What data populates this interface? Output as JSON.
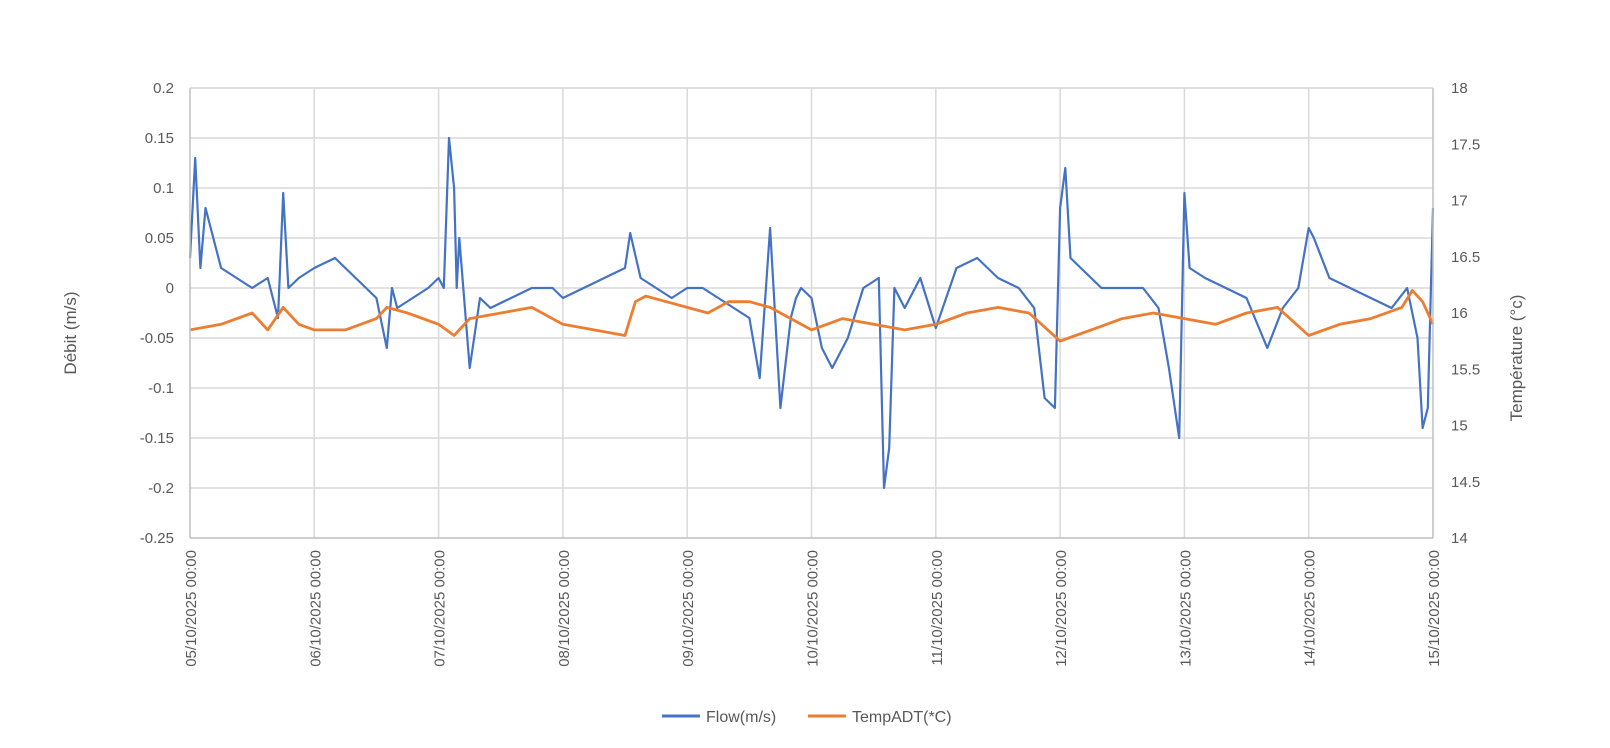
{
  "chart_data": {
    "type": "line",
    "title": "",
    "xlabel": "",
    "ylabel_left": "Débit (m/s)",
    "ylabel_right": "Température (°c)",
    "ylim_left": [
      -0.25,
      0.2
    ],
    "ylim_right": [
      14,
      18
    ],
    "y_ticks_left": [
      "0.2",
      "0.15",
      "0.1",
      "0.05",
      "0",
      "-0.05",
      "-0.1",
      "-0.15",
      "-0.2",
      "-0.25"
    ],
    "y_ticks_right": [
      "18",
      "17.5",
      "17",
      "16.5",
      "16",
      "15.5",
      "15",
      "14.5",
      "14"
    ],
    "x_tick_labels": [
      "05/10/2025 00:00",
      "06/10/2025 00:00",
      "07/10/2025 00:00",
      "08/10/2025 00:00",
      "09/10/2025 00:00",
      "10/10/2025 00:00",
      "11/10/2025 00:00",
      "12/10/2025 00:00",
      "13/10/2025 00:00",
      "14/10/2025 00:00",
      "15/10/2025 00:00"
    ],
    "grid": true,
    "legend": "bottom",
    "series": [
      {
        "name": "Flow(m/s)",
        "axis": "left",
        "color": "#4472c4",
        "x": [
          "05/10/2025 00:00",
          "05/10/2025 01:00",
          "05/10/2025 02:00",
          "05/10/2025 03:00",
          "05/10/2025 06:00",
          "05/10/2025 09:00",
          "05/10/2025 12:00",
          "05/10/2025 15:00",
          "05/10/2025 17:00",
          "05/10/2025 18:00",
          "05/10/2025 19:00",
          "05/10/2025 21:00",
          "06/10/2025 00:00",
          "06/10/2025 04:00",
          "06/10/2025 08:00",
          "06/10/2025 12:00",
          "06/10/2025 14:00",
          "06/10/2025 15:00",
          "06/10/2025 16:00",
          "06/10/2025 19:00",
          "06/10/2025 22:00",
          "07/10/2025 00:00",
          "07/10/2025 01:00",
          "07/10/2025 02:00",
          "07/10/2025 03:00",
          "07/10/2025 03:30",
          "07/10/2025 04:00",
          "07/10/2025 06:00",
          "07/10/2025 08:00",
          "07/10/2025 10:00",
          "07/10/2025 14:00",
          "07/10/2025 18:00",
          "07/10/2025 22:00",
          "08/10/2025 00:00",
          "08/10/2025 04:00",
          "08/10/2025 08:00",
          "08/10/2025 12:00",
          "08/10/2025 13:00",
          "08/10/2025 15:00",
          "08/10/2025 18:00",
          "08/10/2025 21:00",
          "09/10/2025 00:00",
          "09/10/2025 03:00",
          "09/10/2025 06:00",
          "09/10/2025 09:00",
          "09/10/2025 12:00",
          "09/10/2025 14:00",
          "09/10/2025 16:00",
          "09/10/2025 18:00",
          "09/10/2025 20:00",
          "09/10/2025 21:00",
          "09/10/2025 22:00",
          "10/10/2025 00:00",
          "10/10/2025 02:00",
          "10/10/2025 04:00",
          "10/10/2025 07:00",
          "10/10/2025 10:00",
          "10/10/2025 13:00",
          "10/10/2025 14:00",
          "10/10/2025 15:00",
          "10/10/2025 16:00",
          "10/10/2025 18:00",
          "10/10/2025 21:00",
          "11/10/2025 00:00",
          "11/10/2025 04:00",
          "11/10/2025 08:00",
          "11/10/2025 12:00",
          "11/10/2025 16:00",
          "11/10/2025 19:00",
          "11/10/2025 21:00",
          "11/10/2025 23:00",
          "12/10/2025 00:00",
          "12/10/2025 01:00",
          "12/10/2025 02:00",
          "12/10/2025 04:00",
          "12/10/2025 08:00",
          "12/10/2025 12:00",
          "12/10/2025 16:00",
          "12/10/2025 19:00",
          "12/10/2025 21:00",
          "12/10/2025 23:00",
          "13/10/2025 00:00",
          "13/10/2025 01:00",
          "13/10/2025 04:00",
          "13/10/2025 08:00",
          "13/10/2025 12:00",
          "13/10/2025 16:00",
          "13/10/2025 19:00",
          "13/10/2025 22:00",
          "14/10/2025 00:00",
          "14/10/2025 01:00",
          "14/10/2025 04:00",
          "14/10/2025 08:00",
          "14/10/2025 12:00",
          "14/10/2025 16:00",
          "14/10/2025 19:00",
          "14/10/2025 21:00",
          "14/10/2025 22:00",
          "14/10/2025 23:00",
          "15/10/2025 00:00"
        ],
        "y": [
          0.03,
          0.13,
          0.02,
          0.08,
          0.02,
          0.01,
          0.0,
          0.01,
          -0.03,
          0.095,
          0.0,
          0.01,
          0.02,
          0.03,
          0.01,
          -0.01,
          -0.06,
          0.0,
          -0.02,
          -0.01,
          0.0,
          0.01,
          0.0,
          0.15,
          0.1,
          0.0,
          0.05,
          -0.08,
          -0.01,
          -0.02,
          -0.01,
          0.0,
          0.0,
          -0.01,
          0.0,
          0.01,
          0.02,
          0.055,
          0.01,
          0.0,
          -0.01,
          0.0,
          0.0,
          -0.01,
          -0.02,
          -0.03,
          -0.09,
          0.06,
          -0.12,
          -0.03,
          -0.01,
          0.0,
          -0.01,
          -0.06,
          -0.08,
          -0.05,
          0.0,
          0.01,
          -0.2,
          -0.16,
          0.0,
          -0.02,
          0.01,
          -0.04,
          0.02,
          0.03,
          0.01,
          0.0,
          -0.02,
          -0.11,
          -0.12,
          0.08,
          0.12,
          0.03,
          0.02,
          0.0,
          0.0,
          0.0,
          -0.02,
          -0.08,
          -0.15,
          0.095,
          0.02,
          0.01,
          0.0,
          -0.01,
          -0.06,
          -0.02,
          0.0,
          0.06,
          0.05,
          0.01,
          0.0,
          -0.01,
          -0.02,
          0.0,
          -0.05,
          -0.14,
          -0.12,
          0.08
        ]
      },
      {
        "name": "TempADT(*C)",
        "axis": "right",
        "color": "#ed7d31",
        "x": [
          "05/10/2025 00:00",
          "05/10/2025 06:00",
          "05/10/2025 12:00",
          "05/10/2025 15:00",
          "05/10/2025 18:00",
          "05/10/2025 21:00",
          "06/10/2025 00:00",
          "06/10/2025 06:00",
          "06/10/2025 12:00",
          "06/10/2025 14:00",
          "06/10/2025 18:00",
          "07/10/2025 00:00",
          "07/10/2025 03:00",
          "07/10/2025 06:00",
          "07/10/2025 12:00",
          "07/10/2025 18:00",
          "08/10/2025 00:00",
          "08/10/2025 06:00",
          "08/10/2025 12:00",
          "08/10/2025 14:00",
          "08/10/2025 16:00",
          "08/10/2025 20:00",
          "09/10/2025 00:00",
          "09/10/2025 04:00",
          "09/10/2025 08:00",
          "09/10/2025 12:00",
          "09/10/2025 16:00",
          "09/10/2025 20:00",
          "10/10/2025 00:00",
          "10/10/2025 06:00",
          "10/10/2025 12:00",
          "10/10/2025 18:00",
          "11/10/2025 00:00",
          "11/10/2025 06:00",
          "11/10/2025 12:00",
          "11/10/2025 18:00",
          "12/10/2025 00:00",
          "12/10/2025 03:00",
          "12/10/2025 06:00",
          "12/10/2025 12:00",
          "12/10/2025 18:00",
          "13/10/2025 00:00",
          "13/10/2025 06:00",
          "13/10/2025 12:00",
          "13/10/2025 18:00",
          "14/10/2025 00:00",
          "14/10/2025 06:00",
          "14/10/2025 12:00",
          "14/10/2025 18:00",
          "14/10/2025 20:00",
          "14/10/2025 22:00",
          "15/10/2025 00:00"
        ],
        "y": [
          15.85,
          15.9,
          16.0,
          15.85,
          16.05,
          15.9,
          15.85,
          15.85,
          15.95,
          16.05,
          16.0,
          15.9,
          15.8,
          15.95,
          16.0,
          16.05,
          15.9,
          15.85,
          15.8,
          16.1,
          16.15,
          16.1,
          16.05,
          16.0,
          16.1,
          16.1,
          16.05,
          15.95,
          15.85,
          15.95,
          15.9,
          15.85,
          15.9,
          16.0,
          16.05,
          16.0,
          15.75,
          15.8,
          15.85,
          15.95,
          16.0,
          15.95,
          15.9,
          16.0,
          16.05,
          15.8,
          15.9,
          15.95,
          16.05,
          16.2,
          16.1,
          15.9
        ]
      }
    ]
  }
}
